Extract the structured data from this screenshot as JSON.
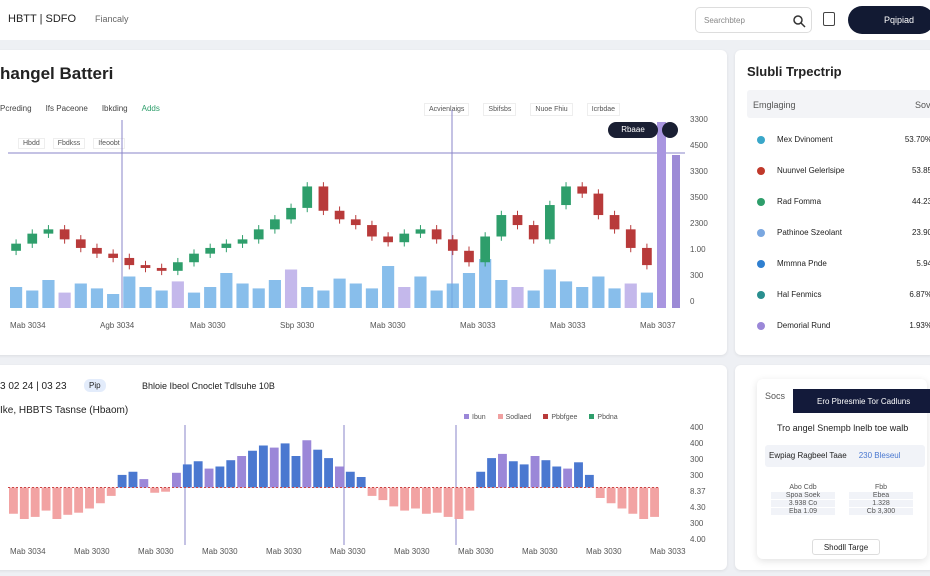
{
  "header": {
    "breadcrumb": "HBTT | SDFO",
    "section": "Fiancaly",
    "search": "Searchbtep",
    "button": "Pqipiad"
  },
  "main_chart": {
    "title": "hangel Batteri",
    "tabs": [
      "Pcreding",
      "Ifs Paceone",
      "Ibkding",
      "Adds"
    ],
    "controls": [
      "Acvienlaigs",
      "Sbifsbs",
      "Nuoe Fhiu",
      "Icrbdae"
    ],
    "legend": [
      "Hbdd",
      "Fbdkss",
      "Ifeoobt"
    ],
    "tooltip": "Rbaae",
    "y_labels": [
      "3300",
      "4500",
      "3300",
      "3500",
      "2300",
      "1.00",
      "300",
      "0"
    ],
    "x_labels": [
      "Mab 3034",
      "Agb 3034",
      "Mab 3030",
      "Sbp 3030",
      "Mab 3030",
      "Mab 3033",
      "Mab 3033",
      "Mab 3037"
    ],
    "ylim": [
      0,
      100
    ],
    "volume_lim": [
      0,
      100
    ],
    "up_color": "#2e9e6b",
    "down_color": "#b83a3a",
    "volume_color": "#6aaee6",
    "candles": [
      [
        40,
        48,
        37,
        45
      ],
      [
        45,
        55,
        42,
        52
      ],
      [
        52,
        58,
        49,
        55
      ],
      [
        55,
        58,
        45,
        48
      ],
      [
        48,
        51,
        39,
        42
      ],
      [
        42,
        45,
        35,
        38
      ],
      [
        38,
        41,
        32,
        35
      ],
      [
        35,
        38,
        27,
        30
      ],
      [
        30,
        33,
        25,
        28
      ],
      [
        28,
        31,
        23,
        26
      ],
      [
        26,
        35,
        23,
        32
      ],
      [
        32,
        41,
        29,
        38
      ],
      [
        38,
        45,
        35,
        42
      ],
      [
        42,
        48,
        39,
        45
      ],
      [
        45,
        51,
        42,
        48
      ],
      [
        48,
        58,
        45,
        55
      ],
      [
        55,
        65,
        52,
        62
      ],
      [
        62,
        73,
        59,
        70
      ],
      [
        70,
        88,
        67,
        85
      ],
      [
        85,
        88,
        65,
        68
      ],
      [
        68,
        71,
        59,
        62
      ],
      [
        62,
        65,
        55,
        58
      ],
      [
        58,
        61,
        47,
        50
      ],
      [
        50,
        53,
        43,
        46
      ],
      [
        46,
        55,
        43,
        52
      ],
      [
        52,
        58,
        49,
        55
      ],
      [
        55,
        58,
        45,
        48
      ],
      [
        48,
        51,
        37,
        40
      ],
      [
        40,
        43,
        29,
        32
      ],
      [
        32,
        53,
        29,
        50
      ],
      [
        50,
        68,
        47,
        65
      ],
      [
        65,
        68,
        55,
        58
      ],
      [
        58,
        61,
        45,
        48
      ],
      [
        48,
        75,
        45,
        72
      ],
      [
        72,
        88,
        69,
        85
      ],
      [
        85,
        88,
        77,
        80
      ],
      [
        80,
        83,
        62,
        65
      ],
      [
        65,
        68,
        52,
        55
      ],
      [
        55,
        58,
        39,
        42
      ],
      [
        42,
        45,
        27,
        30
      ]
    ],
    "volume": [
      30,
      25,
      40,
      22,
      35,
      28,
      20,
      45,
      30,
      25,
      38,
      22,
      30,
      50,
      35,
      28,
      40,
      55,
      30,
      25,
      42,
      35,
      28,
      60,
      30,
      45,
      25,
      35,
      50,
      70,
      40,
      30,
      25,
      55,
      38,
      30,
      45,
      28,
      35,
      22
    ]
  },
  "watchlist": {
    "title": "Slubli Trpectrip",
    "col_name": "Emglaging",
    "col_value": "Sov",
    "rows": [
      {
        "name": "Mex Dvinoment",
        "value": "53.70%",
        "color": "#3aa7c9"
      },
      {
        "name": "Nuunvel Gelerlsipe",
        "value": "53.85",
        "color": "#c0392b"
      },
      {
        "name": "Rad Fomma",
        "value": "44.23",
        "color": "#2e9e6b"
      },
      {
        "name": "Pathinoe Szeolant",
        "value": "23.90",
        "color": "#7aa7e0"
      },
      {
        "name": "Mmmna Pnde",
        "value": "5.94",
        "color": "#2f7fd0"
      },
      {
        "name": "Hal Fenmics",
        "value": "6.87%",
        "color": "#2a8f8f"
      },
      {
        "name": "Demorial Rund",
        "value": "1.93%",
        "color": "#9b87d8"
      }
    ]
  },
  "lower_chart": {
    "date": "3 02 24 | 03 23",
    "tag": "Pip",
    "heading": "Bhloie Ibeol Cnoclet Tdlsuhe 10B",
    "subtitle": "Ike, HBBTS Tasnse (Hbaom)",
    "legend": [
      {
        "name": "Ibun",
        "color": "#9b87d8"
      },
      {
        "name": "Sodlaed",
        "color": "#f0a0a0"
      },
      {
        "name": "Pbbfgee",
        "color": "#b83a3a"
      },
      {
        "name": "Pbdna",
        "color": "#2e9e6b"
      }
    ],
    "y_labels": [
      "400",
      "400",
      "300",
      "300",
      "8.37",
      "4.30",
      "300",
      "4.00"
    ],
    "x_labels": [
      "Mab 3034",
      "Mab 3030",
      "Mab 3030",
      "Mab 3030",
      "Mab 3030",
      "Mab 3030",
      "Mab 3030",
      "Mab 3030",
      "Mab 3030",
      "Mab 3030",
      "Mab 3033"
    ],
    "ylim": [
      -50,
      50
    ],
    "pos_color": "#4a78d0",
    "neg_color": "#f2a3a3",
    "values": [
      -25,
      -30,
      -28,
      -22,
      -30,
      -26,
      -24,
      -20,
      -15,
      -8,
      12,
      15,
      8,
      -5,
      -4,
      14,
      22,
      25,
      18,
      20,
      26,
      30,
      35,
      40,
      38,
      42,
      30,
      45,
      36,
      28,
      20,
      15,
      10,
      -8,
      -12,
      -18,
      -22,
      -20,
      -25,
      -24,
      -28,
      -30,
      -22,
      15,
      28,
      32,
      25,
      22,
      30,
      26,
      20,
      18,
      24,
      12,
      -10,
      -15,
      -20,
      -25,
      -30,
      -28
    ]
  },
  "promo": {
    "label": "Socs",
    "banner": "Ero Pbresmie Tor Cadluns",
    "text": "Tro angel Snempb lnelb toe walb",
    "row_label": "Ewpiag Ragbeel Taae",
    "row_value": "230 Bleseul",
    "boxes": [
      [
        "Abo Cdb",
        "Spoa Soek",
        "3.938 Co",
        "Eba 1.09"
      ],
      [
        "Fbb",
        "Ebea",
        "1.328",
        "Cb 3,300"
      ]
    ],
    "button": "Shodll Targe"
  }
}
